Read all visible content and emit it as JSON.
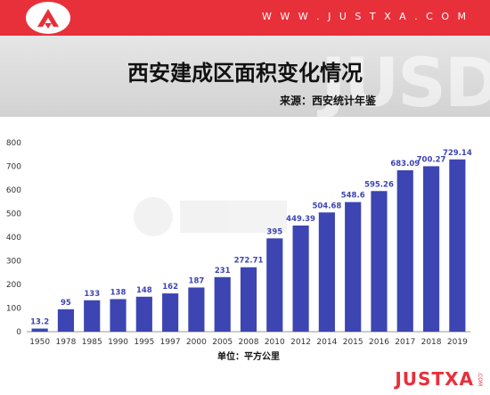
{
  "header": {
    "site_url": "W W W . J U S T X A . C O M",
    "brand_color": "#e8303a",
    "logo": "justxa-logo-icon"
  },
  "band": {
    "watermark": "JUSD"
  },
  "footer": {
    "brand": "JUSTXA",
    "brand_sub": ".COM"
  },
  "chart_data": {
    "type": "bar",
    "title": "西安建成区面积变化情况",
    "source": "来源：西安统计年鉴",
    "xlabel": "单位：平方公里",
    "ylabel": "",
    "ylim": [
      0,
      800
    ],
    "yticks": [
      0,
      100,
      200,
      300,
      400,
      500,
      600,
      700,
      800
    ],
    "bar_color": "#3d45b3",
    "label_color": "#3d45b3",
    "grid": false,
    "categories": [
      "1950",
      "1978",
      "1985",
      "1990",
      "1995",
      "1997",
      "2000",
      "2005",
      "2008",
      "2010",
      "2012",
      "2014",
      "2015",
      "2016",
      "2017",
      "2018",
      "2019"
    ],
    "values": [
      13.2,
      95,
      133,
      138,
      148,
      162,
      187,
      231,
      272.71,
      395,
      449.39,
      504.68,
      548.6,
      595.26,
      683.09,
      700.27,
      729.14
    ],
    "value_labels": [
      "13.2",
      "95",
      "133",
      "138",
      "148",
      "162",
      "187",
      "231",
      "272.71",
      "395",
      "449.39",
      "504.68",
      "548.6",
      "595.26",
      "683.09",
      "700.27",
      "729.14"
    ]
  }
}
